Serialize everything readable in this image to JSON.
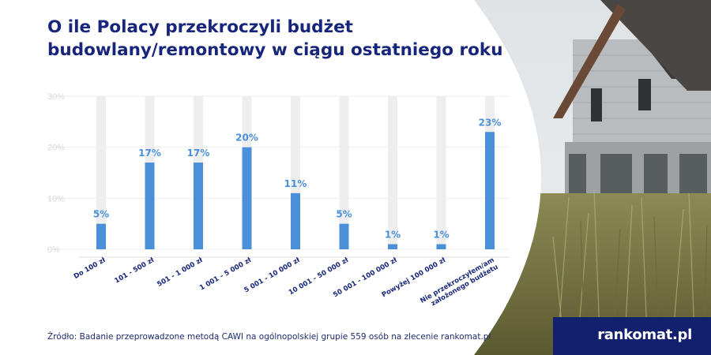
{
  "title": {
    "line1": "O ile Polacy przekroczyli budżet",
    "line2": "budowlany/remontowy w ciągu ostatniego roku"
  },
  "chart_data": {
    "type": "bar",
    "categories": [
      "Do 100 zł",
      "101 - 500 zł",
      "501 - 1 000 zł",
      "1 001 - 5 000 zł",
      "5 001 - 10 000 zł",
      "10 001 - 50 000 zł",
      "50 001 - 100 000 zł",
      "Powyżej 100 000 zł",
      "Nie przekroczyłem/am założonego budżetu"
    ],
    "values": [
      5,
      17,
      17,
      20,
      11,
      5,
      1,
      1,
      23
    ],
    "value_labels": [
      "5%",
      "17%",
      "17%",
      "20%",
      "11%",
      "5%",
      "1%",
      "1%",
      "23%"
    ],
    "yticks": [
      "0%",
      "10%",
      "20%",
      "30%"
    ],
    "ylim": [
      0,
      30
    ],
    "grid": true,
    "colors": {
      "bar": "#4a90d9",
      "track": "#eeeeee",
      "label": "#4a90d9"
    }
  },
  "footer": {
    "source": "Źródło: Badanie przeprowadzone metodą CAWI na ogólnopolskiej grupie 559 osób na zlecenie rankomat.pl",
    "brand": "rankomat.pl"
  },
  "colors": {
    "title": "#17257a",
    "brand_bg": "#13206e"
  }
}
